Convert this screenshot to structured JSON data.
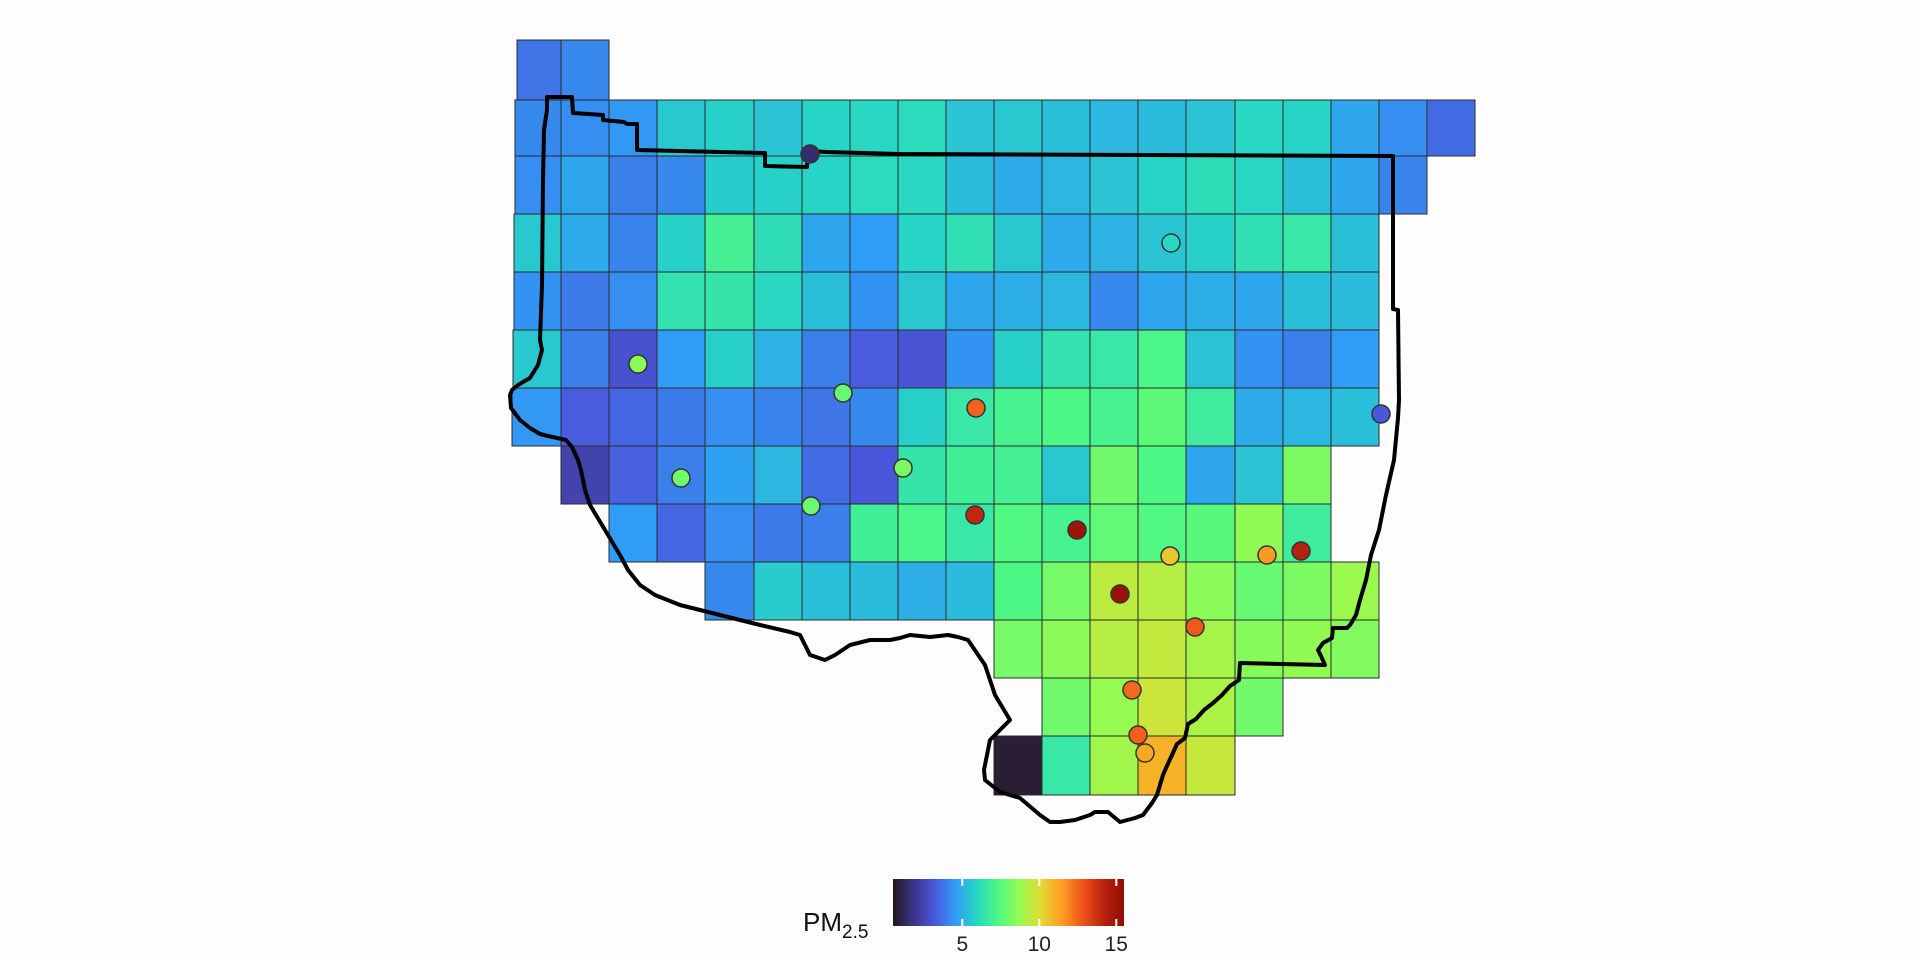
{
  "legend": {
    "title_main": "PM",
    "title_sub": "2.5",
    "min": 0.5,
    "max": 15.5,
    "ticks": [
      {
        "value": 5,
        "label": "5"
      },
      {
        "value": 10,
        "label": "10"
      },
      {
        "value": 15,
        "label": "15"
      }
    ],
    "colormap": [
      "#23171b",
      "#3d358b",
      "#4a58dd",
      "#2f9df5",
      "#27d7c4",
      "#4df884",
      "#95fb51",
      "#dedd32",
      "#ff9f23",
      "#f1541a",
      "#ba2210",
      "#900c00"
    ]
  },
  "grid": {
    "rows": [
      {
        "row": 0,
        "c0": 0,
        "values": [
          3.8,
          4.2
        ]
      },
      {
        "row": 1,
        "c0": 0,
        "values": [
          4.2,
          4.3,
          4.5,
          5.6,
          5.8,
          5.5,
          5.9,
          6.0,
          6.1,
          5.5,
          5.6,
          5.4,
          5.2,
          5.3,
          5.5,
          6.0,
          5.9,
          4.8,
          4.3,
          3.6
        ]
      },
      {
        "row": 2,
        "c0": 0,
        "values": [
          4.3,
          4.8,
          4.0,
          4.2,
          5.7,
          5.8,
          5.9,
          6.1,
          6.0,
          5.3,
          4.9,
          5.2,
          5.5,
          5.9,
          6.2,
          6.0,
          5.4,
          4.8,
          4.1
        ]
      },
      {
        "row": 3,
        "c0": 0,
        "values": [
          5.6,
          4.9,
          4.1,
          5.8,
          7.0,
          6.2,
          4.8,
          4.6,
          5.9,
          6.3,
          5.6,
          4.9,
          5.1,
          5.5,
          5.8,
          6.3,
          6.6,
          5.4
        ]
      },
      {
        "row": 4,
        "c0": 0,
        "values": [
          4.4,
          3.9,
          4.3,
          6.4,
          6.5,
          6.0,
          5.4,
          4.4,
          5.6,
          4.8,
          5.0,
          5.2,
          4.2,
          4.8,
          5.0,
          4.8,
          5.4,
          5.3
        ]
      },
      {
        "row": 5,
        "c0": 0,
        "values": [
          5.6,
          4.0,
          3.0,
          4.6,
          5.8,
          5.1,
          4.0,
          3.3,
          3.1,
          4.4,
          5.8,
          6.4,
          6.6,
          7.2,
          5.5,
          4.4,
          4.0,
          4.6
        ]
      },
      {
        "row": 6,
        "c0": 0,
        "values": [
          4.5,
          3.3,
          3.5,
          3.9,
          4.3,
          4.1,
          3.8,
          4.2,
          5.8,
          6.6,
          7.1,
          7.3,
          7.1,
          7.6,
          6.8,
          4.9,
          5.2,
          5.4
        ]
      },
      {
        "row": 7,
        "c1": 1,
        "c0": 1,
        "values": [
          2.4,
          3.4,
          4.0,
          4.7,
          5.2,
          3.6,
          3.2,
          6.5,
          6.9,
          7.0,
          5.6,
          8.0,
          7.3,
          4.8,
          5.5,
          8.2
        ]
      },
      {
        "row": 8,
        "c0": 2,
        "values": [
          4.6,
          3.5,
          4.3,
          3.9,
          4.0,
          6.9,
          7.2,
          6.6,
          7.4,
          7.1,
          7.7,
          7.4,
          7.5,
          8.6,
          6.8
        ]
      },
      {
        "row": 9,
        "c0": 4,
        "values": [
          4.2,
          5.7,
          5.4,
          5.3,
          5.0,
          5.3,
          7.3,
          8.1,
          9.4,
          9.3,
          8.5,
          7.8,
          8.2,
          8.8
        ]
      },
      {
        "row": 10,
        "c0": 10,
        "values": [
          8.1,
          8.5,
          9.3,
          9.5,
          9.0,
          8.4,
          8.6,
          8.3
        ]
      },
      {
        "row": 11,
        "c0": 11,
        "values": [
          8.0,
          8.7,
          9.7,
          9.1,
          8.0
        ]
      },
      {
        "row": 12,
        "c0": 10,
        "values": [
          0.8,
          6.6,
          8.9,
          11.0,
          9.6
        ]
      }
    ]
  },
  "monitors": [
    {
      "value": 1.5
    },
    {
      "value": 6.0
    },
    {
      "value": 8.5
    },
    {
      "value": 7.8
    },
    {
      "value": 12.5
    },
    {
      "value": 3.2
    },
    {
      "value": 8.0
    },
    {
      "value": 8.2
    },
    {
      "value": 7.9
    },
    {
      "value": 14.0
    },
    {
      "value": 15.0
    },
    {
      "value": 10.5
    },
    {
      "value": 11.5
    },
    {
      "value": 14.2
    },
    {
      "value": 15.2
    },
    {
      "value": 12.7
    },
    {
      "value": 12.4
    },
    {
      "value": 12.6
    },
    {
      "value": 11.2
    }
  ]
}
